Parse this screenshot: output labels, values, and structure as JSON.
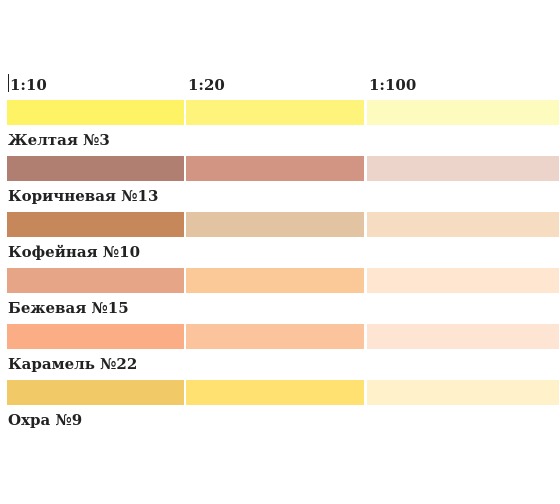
{
  "headers": [
    "1:10",
    "1:20",
    "1:100"
  ],
  "rows": [
    {
      "label": "Желтая №3",
      "colors": [
        "#fdf365",
        "#fef47c",
        "#fefbbe"
      ]
    },
    {
      "label": "Коричневая №13",
      "colors": [
        "#b07f72",
        "#d29583",
        "#ecd4cb"
      ]
    },
    {
      "label": "Кофейная №10",
      "colors": [
        "#c6885a",
        "#e3c4a2",
        "#f6ddc2"
      ]
    },
    {
      "label": "Бежевая №15",
      "colors": [
        "#e7a587",
        "#fbc898",
        "#fee6d1"
      ]
    },
    {
      "label": "Карамель №22",
      "colors": [
        "#fbae86",
        "#fcc49d",
        "#fee5d3"
      ]
    },
    {
      "label": "Охра №9",
      "colors": [
        "#f1c966",
        "#fee171",
        "#fff1ca"
      ]
    }
  ]
}
